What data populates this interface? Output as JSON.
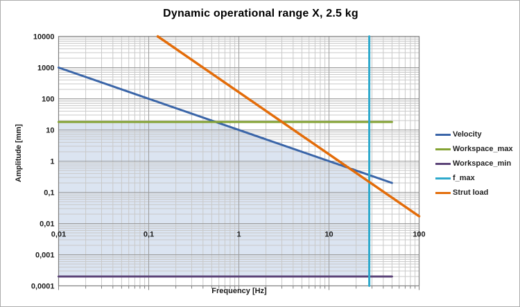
{
  "colors": {
    "background": "#FFFFFF",
    "outer_border": "#ABABAB",
    "plot_border": "#7F7F7F",
    "grid_minor": "#C9C9C9",
    "grid_major": "#9A9A9A",
    "tick_color": "#7F7F7F",
    "shading": "#DBE4F1"
  },
  "legend": {
    "position": "right"
  },
  "chart_data": {
    "type": "line",
    "title": "Dynamic operational range X, 2.5 kg",
    "x_axis": {
      "label": "Frequency [Hz]",
      "scale": "log",
      "min": 0.01,
      "max": 100,
      "tick_labels": [
        "0,01",
        "0,1",
        "1",
        "10",
        "100"
      ],
      "tick_values": [
        0.01,
        0.1,
        1,
        10,
        100
      ]
    },
    "y_axis": {
      "label": "Amplitude [mm]",
      "scale": "log",
      "min": 0.0001,
      "max": 10000,
      "tick_labels": [
        "10000",
        "1000",
        "100",
        "10",
        "1",
        "0,1",
        "0,01",
        "0,001",
        "0,0001"
      ],
      "tick_values": [
        10000,
        1000,
        100,
        10,
        1,
        0.1,
        0.01,
        0.001,
        0.0001
      ]
    },
    "grid": "log-minor-and-major",
    "legend_position": "right",
    "series": [
      {
        "name": "Velocity",
        "color": "#3A65A8",
        "width": 3,
        "points": [
          [
            0.01,
            1000
          ],
          [
            50,
            0.2
          ]
        ]
      },
      {
        "name": "Workspace_max",
        "color": "#84A333",
        "width": 3,
        "points": [
          [
            0.01,
            18
          ],
          [
            50,
            18
          ]
        ]
      },
      {
        "name": "Workspace_min",
        "color": "#5C4478",
        "width": 3,
        "points": [
          [
            0.01,
            0.0002
          ],
          [
            50,
            0.0002
          ]
        ]
      },
      {
        "name": "f_max",
        "color": "#2EA9CC",
        "width": 3,
        "points": [
          [
            28,
            0.0001
          ],
          [
            28,
            10000
          ]
        ]
      },
      {
        "name": "Strut load",
        "color": "#E36C09",
        "width": 3.5,
        "points": [
          [
            0.126,
            10000
          ],
          [
            100,
            0.017
          ]
        ]
      }
    ],
    "operational_region": {
      "description": "shaded dynamic operational range",
      "vertices": [
        [
          0.01,
          0.0002
        ],
        [
          0.01,
          18
        ],
        [
          0.556,
          18
        ],
        [
          16.8,
          0.595
        ],
        [
          28,
          0.214
        ],
        [
          28,
          0.0002
        ]
      ]
    }
  }
}
